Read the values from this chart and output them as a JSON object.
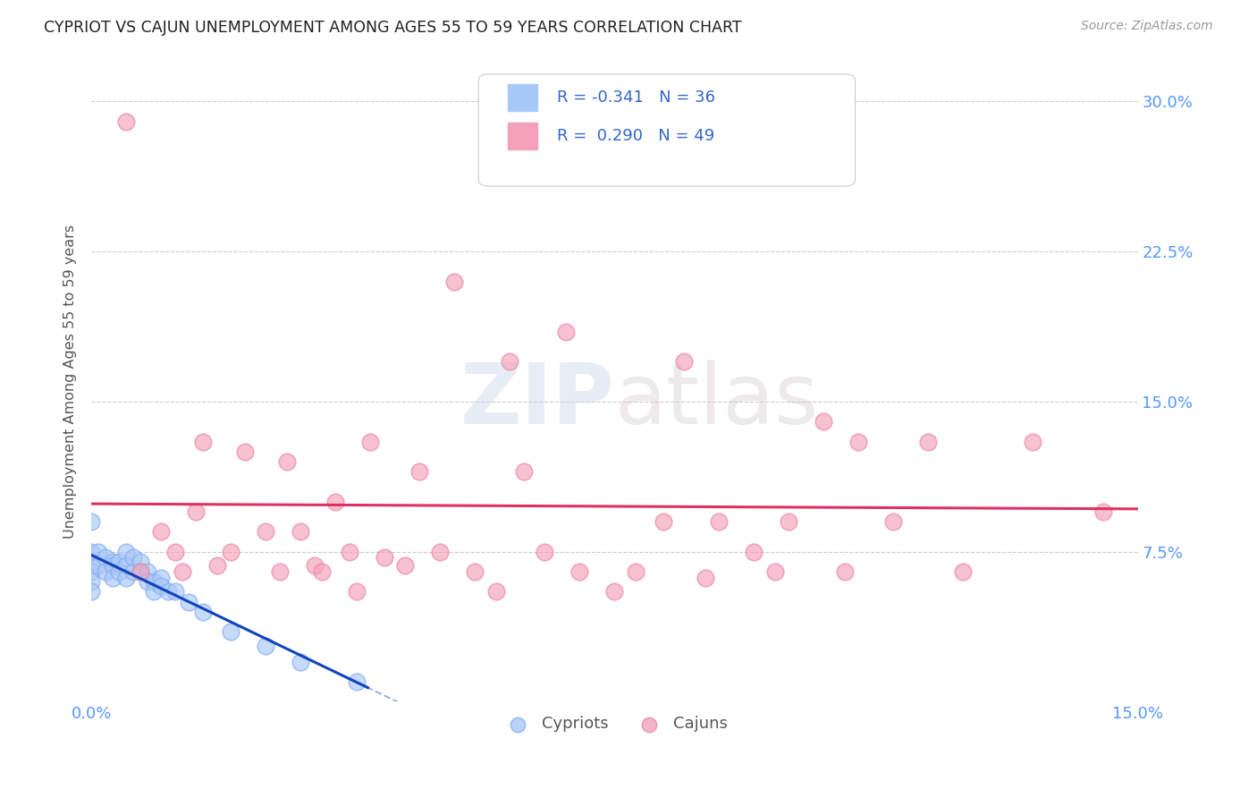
{
  "title": "CYPRIOT VS CAJUN UNEMPLOYMENT AMONG AGES 55 TO 59 YEARS CORRELATION CHART",
  "source": "Source: ZipAtlas.com",
  "ylabel": "Unemployment Among Ages 55 to 59 years",
  "xlim": [
    0.0,
    0.15
  ],
  "ylim": [
    0.0,
    0.32
  ],
  "legend_R_cypriot": "-0.341",
  "legend_N_cypriot": "36",
  "legend_R_cajun": "0.290",
  "legend_N_cajun": "49",
  "cypriot_color": "#a8c8f8",
  "cajun_color": "#f4a0b8",
  "cypriot_line_color": "#1144bb",
  "cajun_line_color": "#e03060",
  "background_color": "#ffffff",
  "legend_text_color": "#3366cc",
  "tick_label_color": "#5599ff",
  "cypriot_scatter_x": [
    0.0,
    0.0,
    0.0,
    0.0,
    0.0,
    0.0,
    0.001,
    0.001,
    0.002,
    0.002,
    0.003,
    0.003,
    0.003,
    0.004,
    0.004,
    0.005,
    0.005,
    0.005,
    0.006,
    0.006,
    0.007,
    0.007,
    0.008,
    0.008,
    0.009,
    0.009,
    0.01,
    0.01,
    0.011,
    0.012,
    0.014,
    0.016,
    0.02,
    0.025,
    0.03,
    0.038
  ],
  "cypriot_scatter_y": [
    0.09,
    0.075,
    0.07,
    0.065,
    0.06,
    0.055,
    0.075,
    0.068,
    0.072,
    0.065,
    0.07,
    0.068,
    0.062,
    0.07,
    0.065,
    0.075,
    0.068,
    0.062,
    0.072,
    0.065,
    0.07,
    0.065,
    0.065,
    0.06,
    0.06,
    0.055,
    0.062,
    0.058,
    0.055,
    0.055,
    0.05,
    0.045,
    0.035,
    0.028,
    0.02,
    0.01
  ],
  "cajun_scatter_x": [
    0.005,
    0.007,
    0.01,
    0.012,
    0.013,
    0.015,
    0.016,
    0.018,
    0.02,
    0.022,
    0.025,
    0.027,
    0.028,
    0.03,
    0.032,
    0.033,
    0.035,
    0.037,
    0.038,
    0.04,
    0.042,
    0.045,
    0.047,
    0.05,
    0.052,
    0.055,
    0.058,
    0.06,
    0.062,
    0.065,
    0.068,
    0.07,
    0.075,
    0.078,
    0.082,
    0.085,
    0.088,
    0.09,
    0.095,
    0.098,
    0.1,
    0.105,
    0.108,
    0.11,
    0.115,
    0.12,
    0.125,
    0.135,
    0.145
  ],
  "cajun_scatter_y": [
    0.29,
    0.065,
    0.085,
    0.075,
    0.065,
    0.095,
    0.13,
    0.068,
    0.075,
    0.125,
    0.085,
    0.065,
    0.12,
    0.085,
    0.068,
    0.065,
    0.1,
    0.075,
    0.055,
    0.13,
    0.072,
    0.068,
    0.115,
    0.075,
    0.21,
    0.065,
    0.055,
    0.17,
    0.115,
    0.075,
    0.185,
    0.065,
    0.055,
    0.065,
    0.09,
    0.17,
    0.062,
    0.09,
    0.075,
    0.065,
    0.09,
    0.14,
    0.065,
    0.13,
    0.09,
    0.13,
    0.065,
    0.13,
    0.095
  ],
  "watermark_zip": "ZIP",
  "watermark_atlas": "atlas"
}
